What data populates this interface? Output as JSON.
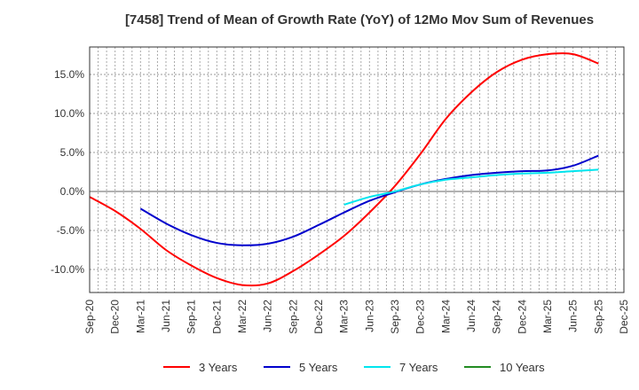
{
  "chart_data": {
    "type": "line",
    "title": "[7458]  Trend of Mean of Growth Rate (YoY) of 12Mo Mov Sum of Revenues",
    "xlabel": "",
    "ylabel": "",
    "x_ticks": [
      "Sep-20",
      "Dec-20",
      "Mar-21",
      "Jun-21",
      "Sep-21",
      "Dec-21",
      "Mar-22",
      "Jun-22",
      "Sep-22",
      "Dec-22",
      "Mar-23",
      "Jun-23",
      "Sep-23",
      "Dec-23",
      "Mar-24",
      "Jun-24",
      "Sep-24",
      "Dec-24",
      "Mar-25",
      "Jun-25",
      "Sep-25",
      "Dec-25"
    ],
    "y_ticks": [
      -10,
      -5,
      0,
      5,
      10,
      15
    ],
    "y_tick_labels": [
      "-10.0%",
      "-5.0%",
      "0.0%",
      "5.0%",
      "10.0%",
      "15.0%"
    ],
    "ylim": [
      -13.0,
      18.5
    ],
    "grid": true,
    "legend_position": "bottom",
    "series": [
      {
        "name": "3 Years",
        "color": "#ff0000",
        "start_index": 0,
        "values": [
          -0.7,
          -2.5,
          -4.8,
          -7.5,
          -9.5,
          -11.1,
          -12.0,
          -11.8,
          -10.2,
          -8.1,
          -5.7,
          -2.7,
          0.7,
          4.8,
          9.3,
          12.7,
          15.3,
          16.9,
          17.6,
          17.6,
          16.4
        ]
      },
      {
        "name": "5 Years",
        "color": "#0000cc",
        "start_index": 2,
        "values": [
          -2.2,
          -4.1,
          -5.6,
          -6.6,
          -6.9,
          -6.7,
          -5.8,
          -4.3,
          -2.7,
          -1.2,
          -0.1,
          0.9,
          1.6,
          2.1,
          2.4,
          2.6,
          2.7,
          3.3,
          4.6
        ]
      },
      {
        "name": "7 Years",
        "color": "#00e5ee",
        "start_index": 10,
        "values": [
          -1.7,
          -0.7,
          0.0,
          0.9,
          1.5,
          1.8,
          2.1,
          2.3,
          2.4,
          2.6,
          2.8
        ]
      },
      {
        "name": "10 Years",
        "color": "#228b22",
        "start_index": 0,
        "values": []
      }
    ]
  }
}
